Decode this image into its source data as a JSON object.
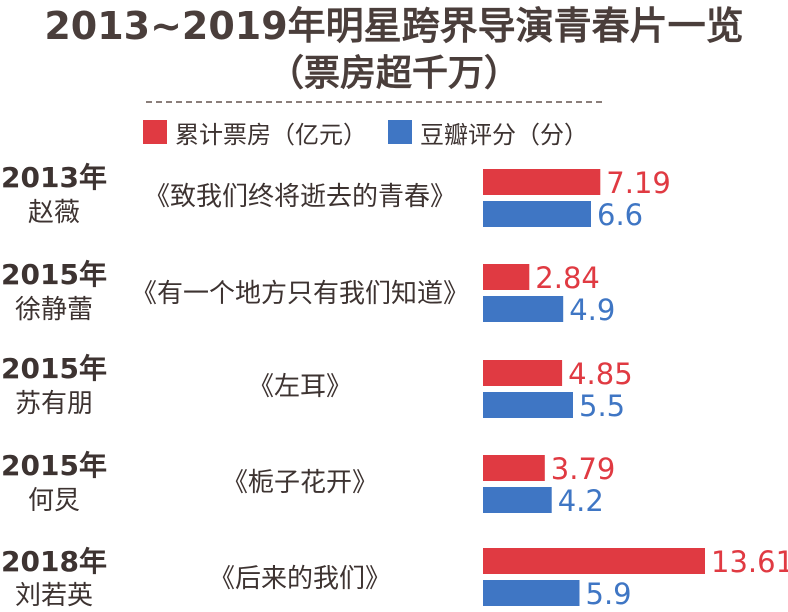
{
  "chart_data": {
    "type": "bar",
    "title": "2013~2019年明星跨界导演青春片一览",
    "subtitle": "（票房超千万）",
    "categories": [
      {
        "year": "2013年",
        "director": "赵薇",
        "film": "《致我们终将逝去的青春》"
      },
      {
        "year": "2015年",
        "director": "徐静蕾",
        "film": "《有一个地方只有我们知道》"
      },
      {
        "year": "2015年",
        "director": "苏有朋",
        "film": "《左耳》"
      },
      {
        "year": "2015年",
        "director": "何炅",
        "film": "《栀子花开》"
      },
      {
        "year": "2018年",
        "director": "刘若英",
        "film": "《后来的我们》"
      }
    ],
    "series": [
      {
        "name": "累计票房（亿元）",
        "color": "#e03a42",
        "values": [
          7.19,
          2.84,
          4.85,
          3.79,
          13.61
        ],
        "labels": [
          "7.19",
          "2.84",
          "4.85",
          "3.79",
          "13.61"
        ]
      },
      {
        "name": "豆瓣评分（分）",
        "color": "#3f76c4",
        "values": [
          6.6,
          4.9,
          5.5,
          4.2,
          5.9
        ],
        "labels": [
          "6.6",
          "4.9",
          "5.5",
          "4.2",
          "5.9"
        ]
      }
    ],
    "legend_position": "top",
    "orientation": "horizontal",
    "grid": false
  }
}
